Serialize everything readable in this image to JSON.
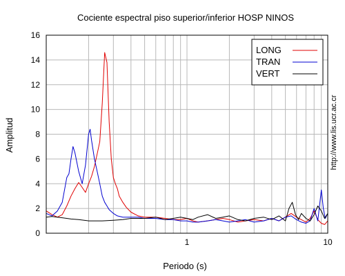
{
  "chart_data": {
    "type": "line",
    "title": "Cociente espectral piso superior/inferior  HOSP NINOS",
    "xlabel": "Periodo (s)",
    "ylabel": "Amplitud",
    "xscale": "log",
    "xlim": [
      0.1,
      10
    ],
    "ylim": [
      0,
      16
    ],
    "x_ticks": [
      1,
      10
    ],
    "x_tick_labels": [
      "1",
      "10"
    ],
    "y_ticks": [
      0,
      2,
      4,
      6,
      8,
      10,
      12,
      14,
      16
    ],
    "grid": true,
    "legend_position": "top-right",
    "watermark": "http://www.lis.ucr.ac.cr",
    "series": [
      {
        "name": "LONG",
        "color": "#e00000",
        "x": [
          0.1,
          0.11,
          0.12,
          0.13,
          0.14,
          0.15,
          0.16,
          0.17,
          0.175,
          0.18,
          0.19,
          0.2,
          0.21,
          0.22,
          0.23,
          0.24,
          0.25,
          0.26,
          0.27,
          0.28,
          0.29,
          0.3,
          0.31,
          0.32,
          0.33,
          0.35,
          0.37,
          0.4,
          0.45,
          0.5,
          0.6,
          0.7,
          0.8,
          0.9,
          1.0,
          1.1,
          1.2,
          1.4,
          1.6,
          1.8,
          2.0,
          2.3,
          2.6,
          3.0,
          3.5,
          4.0,
          4.5,
          5.0,
          5.5,
          6.0,
          6.5,
          7.0,
          7.5,
          8.0,
          8.5,
          9.0,
          9.5,
          10.0
        ],
        "y": [
          1.8,
          1.5,
          1.3,
          1.5,
          2.2,
          3.0,
          3.6,
          4.1,
          3.9,
          3.7,
          3.3,
          4.0,
          4.6,
          5.4,
          6.4,
          7.4,
          10.5,
          14.6,
          13.8,
          9.0,
          6.0,
          4.5,
          4.0,
          3.6,
          3.0,
          2.5,
          2.1,
          1.7,
          1.4,
          1.3,
          1.3,
          1.2,
          1.1,
          1.1,
          1.2,
          1.0,
          0.9,
          1.0,
          1.1,
          1.2,
          1.1,
          0.9,
          1.0,
          1.1,
          1.0,
          1.2,
          1.0,
          1.3,
          1.6,
          1.3,
          1.1,
          0.9,
          1.2,
          1.8,
          1.1,
          0.8,
          0.7,
          1.0
        ]
      },
      {
        "name": "TRAN",
        "color": "#0000d0",
        "x": [
          0.1,
          0.11,
          0.12,
          0.13,
          0.14,
          0.145,
          0.15,
          0.155,
          0.16,
          0.17,
          0.18,
          0.19,
          0.2,
          0.205,
          0.21,
          0.22,
          0.23,
          0.24,
          0.25,
          0.26,
          0.27,
          0.28,
          0.3,
          0.32,
          0.35,
          0.4,
          0.45,
          0.5,
          0.6,
          0.7,
          0.8,
          0.9,
          1.0,
          1.1,
          1.2,
          1.4,
          1.6,
          1.8,
          2.0,
          2.3,
          2.6,
          3.0,
          3.5,
          4.0,
          4.5,
          5.0,
          5.5,
          6.0,
          6.5,
          7.0,
          7.5,
          8.0,
          8.5,
          9.0,
          9.3,
          9.6,
          10.0
        ],
        "y": [
          1.6,
          1.4,
          1.8,
          2.5,
          4.5,
          4.8,
          6.0,
          7.0,
          6.5,
          5.0,
          4.0,
          5.5,
          8.0,
          8.4,
          7.5,
          6.0,
          5.0,
          4.0,
          3.0,
          2.5,
          2.2,
          1.9,
          1.6,
          1.4,
          1.3,
          1.3,
          1.3,
          1.2,
          1.2,
          1.1,
          1.1,
          1.0,
          1.0,
          0.9,
          0.9,
          1.0,
          1.1,
          1.0,
          0.9,
          1.0,
          1.1,
          0.9,
          1.0,
          1.2,
          1.0,
          1.3,
          1.4,
          1.1,
          0.9,
          0.8,
          1.0,
          2.0,
          1.0,
          3.5,
          2.0,
          1.2,
          1.6
        ]
      },
      {
        "name": "VERT",
        "color": "#000000",
        "x": [
          0.1,
          0.11,
          0.12,
          0.13,
          0.14,
          0.15,
          0.17,
          0.2,
          0.22,
          0.25,
          0.3,
          0.35,
          0.4,
          0.5,
          0.6,
          0.7,
          0.8,
          0.9,
          1.0,
          1.1,
          1.2,
          1.4,
          1.6,
          1.8,
          2.0,
          2.3,
          2.6,
          3.0,
          3.5,
          4.0,
          4.5,
          5.0,
          5.3,
          5.6,
          5.9,
          6.2,
          6.5,
          7.0,
          7.5,
          8.0,
          8.5,
          9.0,
          9.5,
          10.0
        ],
        "y": [
          1.3,
          1.35,
          1.3,
          1.25,
          1.2,
          1.15,
          1.1,
          1.0,
          1.0,
          1.0,
          1.05,
          1.1,
          1.2,
          1.2,
          1.3,
          1.1,
          1.2,
          1.3,
          1.2,
          1.1,
          1.3,
          1.5,
          1.2,
          1.3,
          1.4,
          1.1,
          1.0,
          1.2,
          1.3,
          1.1,
          1.4,
          1.0,
          2.0,
          2.5,
          1.5,
          1.1,
          1.6,
          1.2,
          1.0,
          1.5,
          2.2,
          1.8,
          1.2,
          1.6
        ]
      }
    ]
  }
}
